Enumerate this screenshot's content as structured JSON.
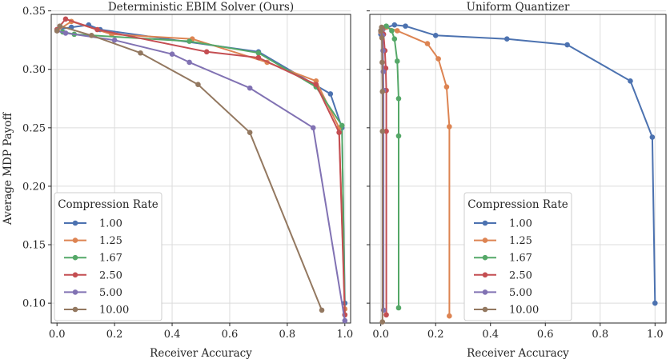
{
  "chart_data": [
    {
      "type": "line",
      "title": "Deterministic EBIM Solver (Ours)",
      "xlabel": "Receiver Accuracy",
      "ylabel": "Average MDP Payoff",
      "xlim": [
        -0.02,
        1.02
      ],
      "ylim": [
        0.083,
        0.347
      ],
      "xticks": [
        0.0,
        0.2,
        0.4,
        0.6,
        0.8,
        1.0
      ],
      "xtick_labels": [
        "0.0",
        "0.2",
        "0.4",
        "0.6",
        "0.8",
        "1.0"
      ],
      "yticks": [
        0.1,
        0.15,
        0.2,
        0.25,
        0.3,
        0.35
      ],
      "ytick_labels": [
        "0.10",
        "0.15",
        "0.20",
        "0.25",
        "0.30",
        "0.35"
      ],
      "grid": true,
      "legend": {
        "title": "Compression Rate",
        "placement": "lower-left"
      },
      "series": [
        {
          "name": "1.00",
          "color": "#4c72b0",
          "x": [
            0.0,
            0.05,
            0.11,
            0.15,
            0.7,
            0.95,
            0.99,
            1.0
          ],
          "y": [
            0.334,
            0.336,
            0.338,
            0.334,
            0.315,
            0.279,
            0.25,
            0.1
          ]
        },
        {
          "name": "1.25",
          "color": "#dd8452",
          "x": [
            0.0,
            0.05,
            0.19,
            0.47,
            0.73,
            0.9,
            0.98,
            1.0
          ],
          "y": [
            0.333,
            0.341,
            0.33,
            0.326,
            0.306,
            0.29,
            0.25,
            0.095
          ]
        },
        {
          "name": "1.67",
          "color": "#55a868",
          "x": [
            0.0,
            0.02,
            0.06,
            0.46,
            0.7,
            0.9,
            0.99,
            1.0
          ],
          "y": [
            0.333,
            0.332,
            0.33,
            0.324,
            0.314,
            0.285,
            0.252,
            0.09
          ]
        },
        {
          "name": "2.50",
          "color": "#c44e52",
          "x": [
            0.0,
            0.03,
            0.14,
            0.52,
            0.7,
            0.9,
            0.98,
            1.0
          ],
          "y": [
            0.334,
            0.343,
            0.334,
            0.315,
            0.31,
            0.287,
            0.246,
            0.09
          ]
        },
        {
          "name": "5.00",
          "color": "#8172b3",
          "x": [
            0.0,
            0.03,
            0.2,
            0.4,
            0.46,
            0.67,
            0.89,
            1.0
          ],
          "y": [
            0.333,
            0.331,
            0.325,
            0.313,
            0.306,
            0.284,
            0.25,
            0.085
          ]
        },
        {
          "name": "10.00",
          "color": "#937860",
          "x": [
            0.0,
            0.01,
            0.12,
            0.29,
            0.49,
            0.67,
            0.92
          ],
          "y": [
            0.333,
            0.337,
            0.329,
            0.314,
            0.287,
            0.246,
            0.094
          ]
        }
      ]
    },
    {
      "type": "line",
      "title": "Uniform Quantizer",
      "xlabel": "Receiver Accuracy",
      "ylabel": "",
      "xlim": [
        -0.04,
        1.04
      ],
      "ylim": [
        0.083,
        0.347
      ],
      "xticks": [
        0.0,
        0.2,
        0.4,
        0.6,
        0.8,
        1.0
      ],
      "xtick_labels": [
        "0.0",
        "0.2",
        "0.4",
        "0.6",
        "0.8",
        "1.0"
      ],
      "yticks": [
        0.1,
        0.15,
        0.2,
        0.25,
        0.3,
        0.35
      ],
      "ytick_labels": [
        "",
        "",
        "",
        "",
        "",
        ""
      ],
      "grid": true,
      "legend": {
        "title": "Compression Rate",
        "placement": "lower-center"
      },
      "series": [
        {
          "name": "1.00",
          "color": "#4c72b0",
          "x": [
            0.0,
            0.005,
            0.01,
            0.05,
            0.09,
            0.2,
            0.46,
            0.68,
            0.91,
            0.99,
            1.0
          ],
          "y": [
            0.33,
            0.333,
            0.335,
            0.338,
            0.337,
            0.329,
            0.326,
            0.321,
            0.29,
            0.242,
            0.1
          ]
        },
        {
          "name": "1.25",
          "color": "#dd8452",
          "x": [
            0.0,
            0.005,
            0.02,
            0.06,
            0.17,
            0.21,
            0.24,
            0.25,
            0.25
          ],
          "y": [
            0.332,
            0.334,
            0.336,
            0.333,
            0.322,
            0.309,
            0.285,
            0.251,
            0.089
          ]
        },
        {
          "name": "1.67",
          "color": "#55a868",
          "x": [
            0.0,
            0.005,
            0.02,
            0.04,
            0.05,
            0.06,
            0.065,
            0.065,
            0.065
          ],
          "y": [
            0.333,
            0.335,
            0.337,
            0.333,
            0.326,
            0.307,
            0.275,
            0.243,
            0.096
          ]
        },
        {
          "name": "2.50",
          "color": "#c44e52",
          "x": [
            0.0,
            0.005,
            0.01,
            0.015,
            0.018,
            0.02,
            0.02,
            0.02
          ],
          "y": [
            0.333,
            0.335,
            0.33,
            0.316,
            0.301,
            0.282,
            0.247,
            0.09
          ]
        },
        {
          "name": "5.00",
          "color": "#8172b3",
          "x": [
            0.0,
            0.003,
            0.006,
            0.008,
            0.009,
            0.01,
            0.01
          ],
          "y": [
            0.333,
            0.334,
            0.329,
            0.316,
            0.298,
            0.282,
            0.094
          ]
        },
        {
          "name": "10.00",
          "color": "#937860",
          "x": [
            0.0,
            0.003,
            0.004,
            0.005,
            0.006,
            0.006,
            0.006
          ],
          "y": [
            0.333,
            0.336,
            0.327,
            0.306,
            0.281,
            0.247,
            0.084
          ]
        }
      ]
    }
  ]
}
